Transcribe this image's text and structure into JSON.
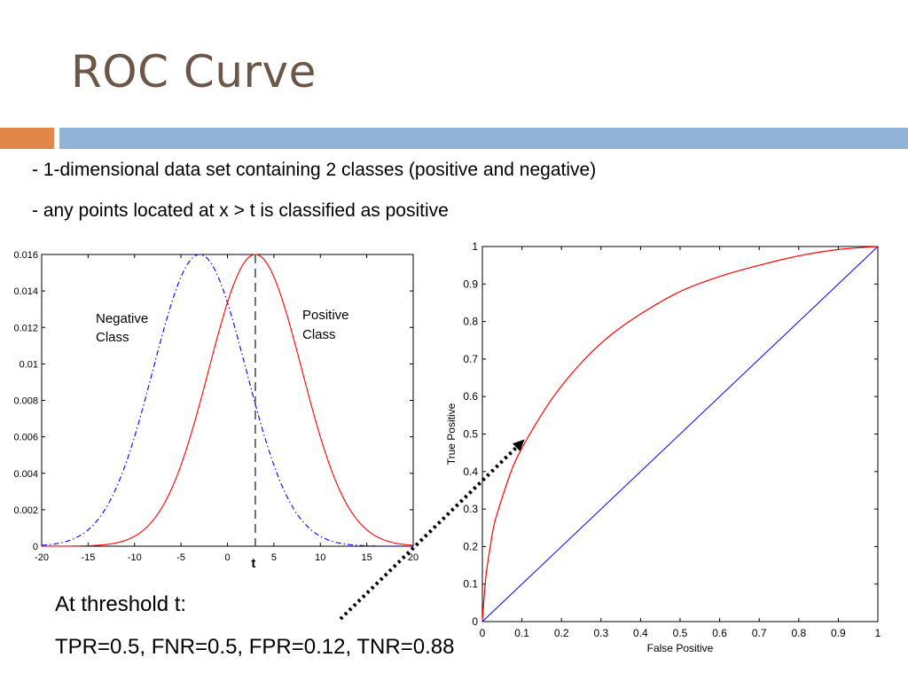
{
  "slide": {
    "title": "ROC Curve",
    "bullets": [
      "- 1-dimensional data set containing 2 classes (positive and negative)",
      "- any points located at x > t is classified as positive"
    ],
    "caption_heading": "At threshold t:",
    "caption_values": "TPR=0.5, FNR=0.5, FPR=0.12, TNR=0.88"
  },
  "colors": {
    "title": "#6b5647",
    "accent_orange": "#e2874a",
    "accent_blue": "#91b3d7",
    "positive_curve": "#ff0000",
    "negative_curve": "#0000ff",
    "diagonal": "#0000ff"
  },
  "chart_data": [
    {
      "type": "line",
      "xlim": [
        -20,
        20
      ],
      "ylim": [
        0,
        0.016
      ],
      "xticks": [
        "-20",
        "-15",
        "-10",
        "-5",
        "0",
        "5",
        "10",
        "15",
        "20"
      ],
      "yticks": [
        "0",
        "0.002",
        "0.004",
        "0.006",
        "0.008",
        "0.01",
        "0.012",
        "0.014",
        "0.016"
      ],
      "threshold": {
        "x": 3,
        "label": "t"
      },
      "series": [
        {
          "name": "Negative Class",
          "style": "dash-dot",
          "mean": -3,
          "sd": 5,
          "peak": 0.016
        },
        {
          "name": "Positive Class",
          "style": "solid",
          "mean": 3,
          "sd": 5,
          "peak": 0.016
        }
      ]
    },
    {
      "type": "line",
      "xlim": [
        0,
        1
      ],
      "ylim": [
        0,
        1
      ],
      "xlabel": "False Positive",
      "ylabel": "True Positive",
      "xticks": [
        "0",
        "0.1",
        "0.2",
        "0.3",
        "0.4",
        "0.5",
        "0.6",
        "0.7",
        "0.8",
        "0.9",
        "1"
      ],
      "yticks": [
        "0",
        "0.1",
        "0.2",
        "0.3",
        "0.4",
        "0.5",
        "0.6",
        "0.7",
        "0.8",
        "0.9",
        "1"
      ],
      "series": [
        {
          "x": [
            0,
            0.004,
            0.01,
            0.02,
            0.03,
            0.05,
            0.08,
            0.12,
            0.18,
            0.25,
            0.32,
            0.4,
            0.5,
            0.6,
            0.7,
            0.8,
            0.9,
            1.0
          ],
          "y": [
            0,
            0.06,
            0.13,
            0.2,
            0.26,
            0.33,
            0.42,
            0.5,
            0.6,
            0.69,
            0.76,
            0.82,
            0.88,
            0.92,
            0.95,
            0.975,
            0.992,
            1.0
          ]
        },
        {
          "x": [
            0,
            1
          ],
          "y": [
            0,
            1
          ]
        }
      ],
      "marked_point": {
        "x": 0.12,
        "y": 0.5
      }
    }
  ]
}
